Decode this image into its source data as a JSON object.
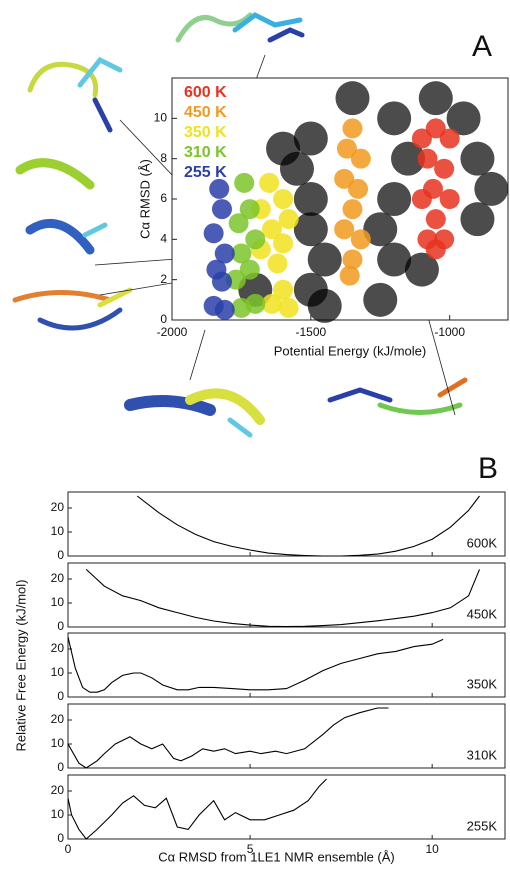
{
  "chart_data": [
    {
      "type": "scatter",
      "panel_label": "A",
      "x_label": "Potential Energy (kJ/mole)",
      "y_label": "Cα RMSD (Å)",
      "xlim": [
        -2000,
        -790
      ],
      "xticks": [
        -2000,
        -1500,
        -1000
      ],
      "ylim": [
        0,
        12
      ],
      "yticks": [
        0,
        2,
        4,
        6,
        8,
        10
      ],
      "series": [
        {
          "color": "#000000",
          "x": [
            -1500,
            -1200,
            -1500,
            -1200,
            -1450,
            -1200,
            -1500,
            -1250,
            -1150,
            -900,
            -900,
            -1600,
            -1350,
            -1050,
            -950,
            -1450,
            -1700,
            -1500,
            -1250,
            -850,
            -1550,
            -1100
          ],
          "y": [
            9,
            10,
            6,
            6,
            3,
            3,
            1.5,
            1,
            8,
            8,
            5,
            8.5,
            11,
            11,
            10,
            0.7,
            1.5,
            4.5,
            4.5,
            6.5,
            7.5,
            2.5
          ]
        },
        {
          "name": "600 K",
          "color": "#e8321e",
          "x": [
            -1100,
            -1050,
            -1000,
            -1080,
            -1020,
            -1060,
            -1000,
            -1100,
            -1050,
            -1080,
            -1020,
            -1050
          ],
          "y": [
            9,
            9.5,
            9,
            8,
            7.5,
            6.5,
            6,
            6,
            5,
            4,
            4,
            3.5
          ]
        },
        {
          "name": "450 K",
          "color": "#f29a1e",
          "x": [
            -1350,
            -1370,
            -1320,
            -1380,
            -1330,
            -1350,
            -1380,
            -1320,
            -1350,
            -1360
          ],
          "y": [
            9.5,
            8.5,
            8,
            7,
            6.5,
            5.5,
            4.5,
            4,
            3,
            2.2
          ]
        },
        {
          "name": "350 K",
          "color": "#f2e21e",
          "x": [
            -1650,
            -1600,
            -1680,
            -1580,
            -1640,
            -1600,
            -1680,
            -1620,
            -1600,
            -1640,
            -1580
          ],
          "y": [
            6.8,
            6,
            5.5,
            5,
            4.5,
            3.8,
            3.5,
            2.8,
            1.5,
            0.8,
            0.6
          ]
        },
        {
          "name": "310 K",
          "color": "#7cc42a",
          "x": [
            -1740,
            -1720,
            -1760,
            -1700,
            -1750,
            -1720,
            -1770,
            -1700,
            -1750
          ],
          "y": [
            6.8,
            5.5,
            4.8,
            4,
            3.3,
            2.5,
            2,
            0.8,
            0.6
          ]
        },
        {
          "name": "255 K",
          "color": "#2a3fa8",
          "x": [
            -1830,
            -1820,
            -1850,
            -1810,
            -1840,
            -1820,
            -1850,
            -1810
          ],
          "y": [
            6.5,
            5.5,
            4.3,
            3.3,
            2.5,
            1.9,
            0.7,
            0.5
          ]
        }
      ]
    },
    {
      "type": "line",
      "panel_label": "B",
      "x_label": "Cα RMSD from 1LE1 NMR ensemble (Å)",
      "y_label": "Relative Free Energy (kJ/mol)",
      "xlim": [
        0,
        12
      ],
      "xticks": [
        0,
        5,
        10
      ],
      "ylim": [
        0,
        25
      ],
      "yticks": [
        0,
        10,
        20
      ],
      "series": [
        {
          "name": "600K",
          "color": "#000000",
          "x": [
            1.9,
            2.5,
            3,
            3.5,
            4,
            4.5,
            5,
            5.5,
            6,
            6.5,
            7,
            7.5,
            8,
            8.5,
            9,
            9.5,
            10,
            10.5,
            11,
            11.3
          ],
          "values": [
            25,
            18,
            13,
            9,
            6,
            4,
            2.5,
            1.2,
            0.6,
            0.2,
            0,
            0,
            0.3,
            0.8,
            2,
            4,
            7,
            12,
            19,
            25
          ]
        },
        {
          "name": "450K",
          "color": "#000000",
          "x": [
            0.5,
            1,
            1.5,
            2,
            2.5,
            3,
            3.5,
            4,
            4.5,
            5,
            5.5,
            6,
            6.5,
            7,
            7.5,
            8,
            8.5,
            9,
            9.5,
            10,
            10.5,
            11,
            11.3
          ],
          "values": [
            24,
            17,
            13,
            11,
            8,
            6,
            4,
            2.5,
            1.5,
            0.8,
            0.3,
            0.2,
            0.3,
            0.6,
            1,
            1.8,
            2.6,
            3.5,
            4.5,
            6,
            8,
            13,
            24
          ]
        },
        {
          "name": "350K",
          "color": "#000000",
          "x": [
            0,
            0.2,
            0.4,
            0.6,
            0.8,
            1,
            1.2,
            1.5,
            1.8,
            2,
            2.3,
            2.6,
            3,
            3.3,
            3.6,
            4,
            4.5,
            5,
            5.5,
            6,
            6.5,
            7,
            7.5,
            8,
            8.5,
            9,
            9.5,
            10,
            10.3
          ],
          "values": [
            25,
            12,
            4,
            2,
            2,
            3,
            6,
            9,
            10,
            10,
            8,
            5,
            3,
            3,
            4,
            4,
            3.5,
            3,
            3,
            3.5,
            7,
            11,
            14,
            16,
            18,
            19,
            21,
            22,
            24
          ]
        },
        {
          "name": "310K",
          "color": "#000000",
          "x": [
            0,
            0.3,
            0.5,
            0.8,
            1,
            1.3,
            1.7,
            2,
            2.3,
            2.6,
            2.9,
            3.1,
            3.4,
            3.7,
            4,
            4.3,
            4.6,
            5,
            5.3,
            5.7,
            6,
            6.5,
            7,
            7.3,
            7.6,
            8,
            8.5,
            8.8
          ],
          "values": [
            10,
            2,
            0,
            3,
            6,
            10,
            13,
            10,
            8,
            10,
            4,
            3,
            5,
            8,
            7,
            8,
            6,
            7,
            6,
            7,
            6,
            8,
            14,
            18,
            21,
            23,
            25,
            25
          ]
        },
        {
          "name": "255K",
          "color": "#000000",
          "x": [
            0,
            0.1,
            0.3,
            0.5,
            0.8,
            1.2,
            1.5,
            1.8,
            2.1,
            2.4,
            2.7,
            3,
            3.3,
            3.6,
            4,
            4.3,
            4.6,
            5,
            5.4,
            5.8,
            6.2,
            6.6,
            6.9,
            7.1
          ],
          "values": [
            17,
            10,
            4,
            0,
            4,
            10,
            15,
            18,
            14,
            13,
            17,
            5,
            4,
            10,
            16,
            8,
            11,
            8,
            8,
            10,
            12,
            16,
            22,
            25
          ]
        }
      ]
    }
  ]
}
